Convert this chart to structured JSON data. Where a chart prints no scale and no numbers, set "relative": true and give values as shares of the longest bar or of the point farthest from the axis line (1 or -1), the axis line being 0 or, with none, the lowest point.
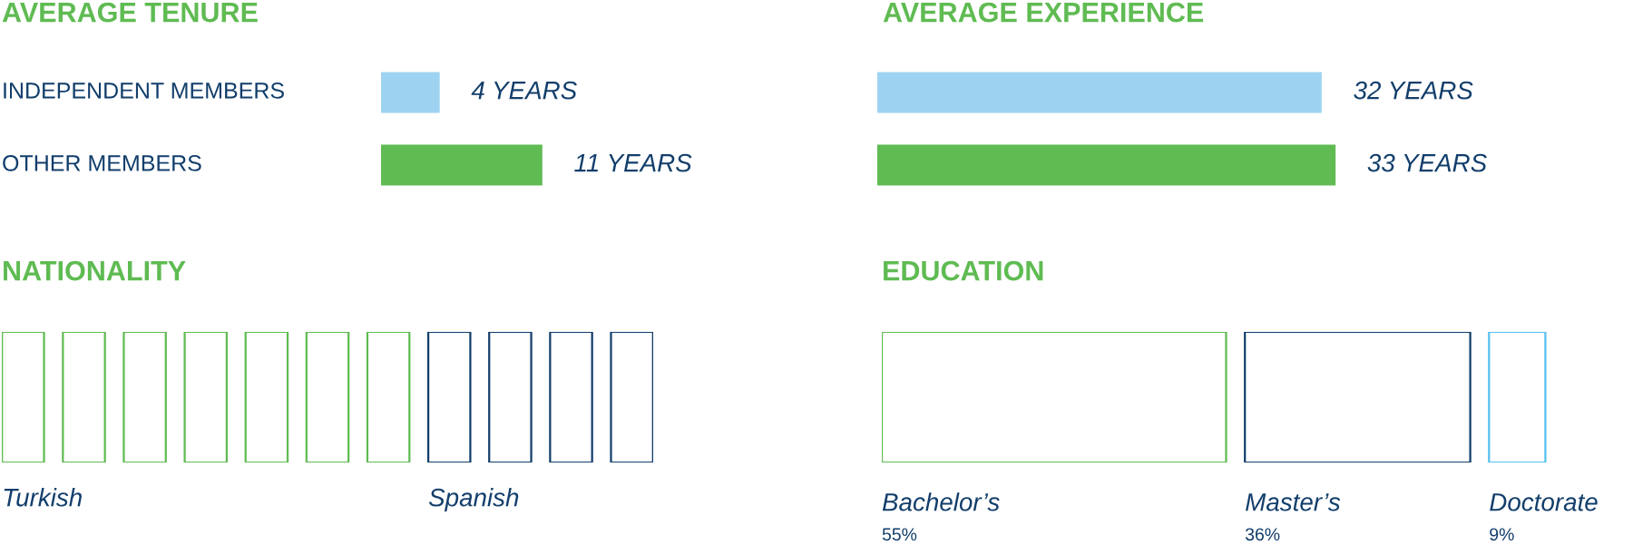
{
  "chart_data": [
    {
      "type": "bar",
      "orientation": "horizontal",
      "title": "AVERAGE TENURE",
      "categories": [
        "INDEPENDENT MEMBERS",
        "OTHER MEMBERS"
      ],
      "values": [
        4,
        11
      ],
      "colors": [
        "#9dd3f1",
        "#5fbb52"
      ],
      "value_labels": [
        "4 YEARS",
        "11 YEARS"
      ]
    },
    {
      "type": "bar",
      "orientation": "horizontal",
      "title": "AVERAGE EXPERIENCE",
      "categories": [
        null,
        null
      ],
      "values": [
        32,
        33
      ],
      "colors": [
        "#9dd3f1",
        "#5fbb52"
      ],
      "value_labels": [
        "32 YEARS",
        "33 YEARS"
      ]
    },
    {
      "type": "bar",
      "relative": true,
      "title": "NATIONALITY",
      "categories": [
        "Turkish",
        null,
        null,
        null,
        null,
        null,
        null,
        "Spanish",
        null,
        null,
        null
      ],
      "values": [
        1,
        1,
        1,
        1,
        1,
        1,
        1,
        1,
        1,
        1,
        1
      ],
      "colors": [
        "#5fbb52",
        "#5fbb52",
        "#5fbb52",
        "#5fbb52",
        "#5fbb52",
        "#5fbb52",
        "#5fbb52",
        "#123e6b",
        "#123e6b",
        "#123e6b",
        "#123e6b"
      ]
    },
    {
      "type": "other",
      "title": "EDUCATION",
      "categories": [
        "Bachelor’s",
        "Master’s",
        "Doctorate"
      ],
      "values": [
        55,
        36,
        9
      ],
      "value_labels": [
        "55%",
        "36%",
        "9%"
      ],
      "colors": [
        "#5fbb52",
        "#123e6b",
        "#55c0f0"
      ]
    }
  ]
}
